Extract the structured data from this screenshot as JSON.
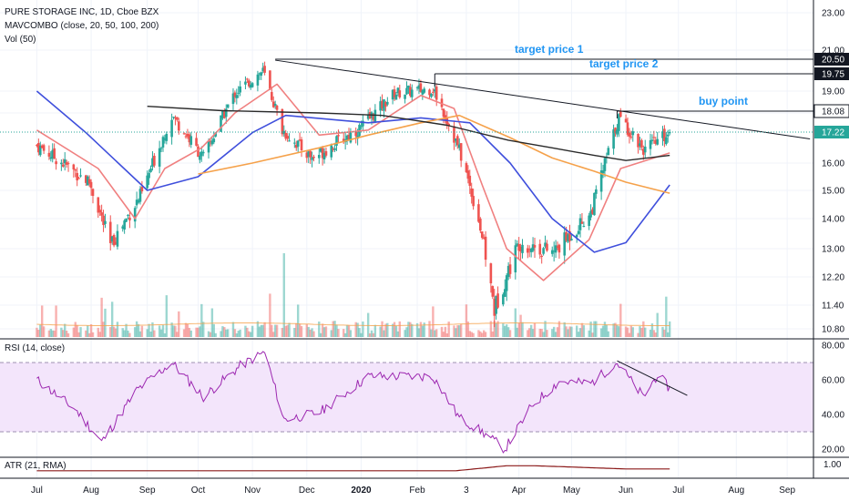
{
  "header": {
    "title": "PURE STORAGE INC, 1D, Cboe BZX",
    "ma_indicator": "MAVCOMBO (close, 20, 50, 100, 200)",
    "vol_indicator": "Vol (50)"
  },
  "chart_data": [
    {
      "type": "candlestick",
      "symbol": "PURE STORAGE INC",
      "interval": "1D",
      "exchange": "Cboe BZX",
      "ylim": [
        10.5,
        23.3
      ],
      "y_ticks": [
        "23.00",
        "21.00",
        "19.00",
        "18.00",
        "16.00",
        "15.00",
        "14.00",
        "13.00",
        "12.20",
        "11.40",
        "10.80"
      ],
      "x_ticks": [
        "Jul",
        "Aug",
        "Sep",
        "Oct",
        "Nov",
        "Dec",
        "2020",
        "Feb",
        "3",
        "Apr",
        "May",
        "Jun",
        "Jul",
        "Aug",
        "Sep"
      ],
      "price_labels": [
        {
          "value": 20.5,
          "text": "20.50",
          "color": "#ffffff",
          "bg": "#131722"
        },
        {
          "value": 19.75,
          "text": "19.75",
          "color": "#ffffff",
          "bg": "#131722"
        },
        {
          "value": 18.08,
          "text": "18.08",
          "color": "#131722",
          "bg": "#ffffff"
        },
        {
          "value": 17.22,
          "text": "17.22",
          "color": "#ffffff",
          "bg": "#26a69a"
        }
      ],
      "annotations": [
        {
          "text": "target price 1",
          "level": 20.5
        },
        {
          "text": "target price 2",
          "level": 19.75
        },
        {
          "text": "buy point",
          "level": 18.08
        }
      ],
      "last_close": 17.22,
      "approx_close_path": [
        {
          "date": "2019-07-01",
          "close": 16.7
        },
        {
          "date": "2019-07-31",
          "close": 15.3
        },
        {
          "date": "2019-08-12",
          "close": 13.1
        },
        {
          "date": "2019-08-30",
          "close": 14.9
        },
        {
          "date": "2019-09-16",
          "close": 17.9
        },
        {
          "date": "2019-10-04",
          "close": 16.2
        },
        {
          "date": "2019-10-22",
          "close": 18.9
        },
        {
          "date": "2019-11-07",
          "close": 19.9
        },
        {
          "date": "2019-11-18",
          "close": 17.3
        },
        {
          "date": "2019-12-05",
          "close": 16.2
        },
        {
          "date": "2020-01-02",
          "close": 17.4
        },
        {
          "date": "2020-01-21",
          "close": 18.9
        },
        {
          "date": "2020-02-12",
          "close": 19.1
        },
        {
          "date": "2020-02-27",
          "close": 16.5
        },
        {
          "date": "2020-03-09",
          "close": 14.0
        },
        {
          "date": "2020-03-18",
          "close": 11.3
        },
        {
          "date": "2020-04-01",
          "close": 13.2
        },
        {
          "date": "2020-04-21",
          "close": 12.9
        },
        {
          "date": "2020-05-12",
          "close": 14.2
        },
        {
          "date": "2020-05-28",
          "close": 17.8
        },
        {
          "date": "2020-06-12",
          "close": 16.5
        },
        {
          "date": "2020-06-26",
          "close": 17.22
        }
      ],
      "moving_averages": [
        {
          "color": "#f08080",
          "points": [
            {
              "date": "2019-07-01",
              "value": 17.3
            },
            {
              "date": "2019-08-05",
              "value": 15.8
            },
            {
              "date": "2019-08-26",
              "value": 14.0
            },
            {
              "date": "2019-09-12",
              "value": 15.8
            },
            {
              "date": "2019-10-03",
              "value": 16.6
            },
            {
              "date": "2019-10-22",
              "value": 18.0
            },
            {
              "date": "2019-11-15",
              "value": 19.3
            },
            {
              "date": "2019-12-09",
              "value": 17.1
            },
            {
              "date": "2020-01-06",
              "value": 17.3
            },
            {
              "date": "2020-02-05",
              "value": 18.8
            },
            {
              "date": "2020-02-24",
              "value": 18.2
            },
            {
              "date": "2020-03-11",
              "value": 15.2
            },
            {
              "date": "2020-03-25",
              "value": 13.0
            },
            {
              "date": "2020-04-15",
              "value": 12.1
            },
            {
              "date": "2020-05-11",
              "value": 13.3
            },
            {
              "date": "2020-05-29",
              "value": 15.8
            },
            {
              "date": "2020-06-26",
              "value": 16.4
            }
          ]
        },
        {
          "color": "#3f4fdc",
          "points": [
            {
              "date": "2019-07-01",
              "value": 19.0
            },
            {
              "date": "2019-07-29",
              "value": 17.2
            },
            {
              "date": "2019-09-02",
              "value": 15.0
            },
            {
              "date": "2019-10-01",
              "value": 15.5
            },
            {
              "date": "2019-11-01",
              "value": 17.2
            },
            {
              "date": "2019-11-20",
              "value": 17.9
            },
            {
              "date": "2020-01-06",
              "value": 17.6
            },
            {
              "date": "2020-02-05",
              "value": 17.8
            },
            {
              "date": "2020-03-04",
              "value": 17.6
            },
            {
              "date": "2020-03-27",
              "value": 16.0
            },
            {
              "date": "2020-04-20",
              "value": 14.0
            },
            {
              "date": "2020-05-14",
              "value": 12.9
            },
            {
              "date": "2020-06-01",
              "value": 13.2
            },
            {
              "date": "2020-06-26",
              "value": 15.2
            }
          ]
        },
        {
          "color": "#f5a14a",
          "points": [
            {
              "date": "2019-10-01",
              "value": 15.6
            },
            {
              "date": "2019-11-01",
              "value": 16.0
            },
            {
              "date": "2019-12-09",
              "value": 16.6
            },
            {
              "date": "2020-01-06",
              "value": 17.1
            },
            {
              "date": "2020-02-05",
              "value": 17.6
            },
            {
              "date": "2020-02-27",
              "value": 17.9
            },
            {
              "date": "2020-03-27",
              "value": 17.0
            },
            {
              "date": "2020-04-20",
              "value": 16.2
            },
            {
              "date": "2020-05-14",
              "value": 15.7
            },
            {
              "date": "2020-06-01",
              "value": 15.3
            },
            {
              "date": "2020-06-26",
              "value": 14.9
            }
          ]
        },
        {
          "color": "#2a2a2a",
          "points": [
            {
              "date": "2019-09-02",
              "value": 18.3
            },
            {
              "date": "2019-10-15",
              "value": 18.1
            },
            {
              "date": "2019-12-09",
              "value": 18.0
            },
            {
              "date": "2020-01-14",
              "value": 17.9
            },
            {
              "date": "2020-02-20",
              "value": 17.5
            },
            {
              "date": "2020-03-26",
              "value": 16.9
            },
            {
              "date": "2020-04-20",
              "value": 16.6
            },
            {
              "date": "2020-05-14",
              "value": 16.3
            },
            {
              "date": "2020-06-01",
              "value": 16.1
            },
            {
              "date": "2020-06-26",
              "value": 16.3
            }
          ]
        }
      ],
      "trendline": {
        "from": {
          "date": "2019-11-14",
          "value": 20.45
        },
        "to": {
          "date": "2020-09-14",
          "value": 16.95
        }
      },
      "colors": {
        "up": "#26a69a",
        "down": "#ef5350"
      }
    },
    {
      "type": "line",
      "indicator": "RSI (14, close)",
      "ylim": [
        15,
        82
      ],
      "y_ticks": [
        "80.00",
        "60.00",
        "40.00",
        "20.00"
      ],
      "band": [
        30,
        70
      ],
      "line_color": "#9c27b0",
      "approx_path": [
        {
          "date": "2019-07-01",
          "value": 60
        },
        {
          "date": "2019-07-23",
          "value": 43
        },
        {
          "date": "2019-08-07",
          "value": 24
        },
        {
          "date": "2019-08-27",
          "value": 54
        },
        {
          "date": "2019-09-16",
          "value": 70
        },
        {
          "date": "2019-10-04",
          "value": 50
        },
        {
          "date": "2019-10-25",
          "value": 68
        },
        {
          "date": "2019-11-08",
          "value": 76
        },
        {
          "date": "2019-11-19",
          "value": 37
        },
        {
          "date": "2019-12-09",
          "value": 41
        },
        {
          "date": "2020-01-06",
          "value": 62
        },
        {
          "date": "2020-02-12",
          "value": 62
        },
        {
          "date": "2020-02-27",
          "value": 38
        },
        {
          "date": "2020-03-11",
          "value": 30
        },
        {
          "date": "2020-03-24",
          "value": 20
        },
        {
          "date": "2020-04-09",
          "value": 46
        },
        {
          "date": "2020-04-24",
          "value": 59
        },
        {
          "date": "2020-05-12",
          "value": 58
        },
        {
          "date": "2020-05-27",
          "value": 70
        },
        {
          "date": "2020-06-11",
          "value": 50
        },
        {
          "date": "2020-06-19",
          "value": 63
        },
        {
          "date": "2020-06-26",
          "value": 55
        }
      ],
      "trendline": {
        "from": {
          "date": "2020-05-27",
          "value": 71
        },
        "to": {
          "date": "2020-07-06",
          "value": 51
        }
      }
    },
    {
      "type": "line",
      "indicator": "ATR (21, RMA)",
      "y_ticks": [
        "1.00"
      ],
      "line_color": "#8b1a1a"
    }
  ]
}
